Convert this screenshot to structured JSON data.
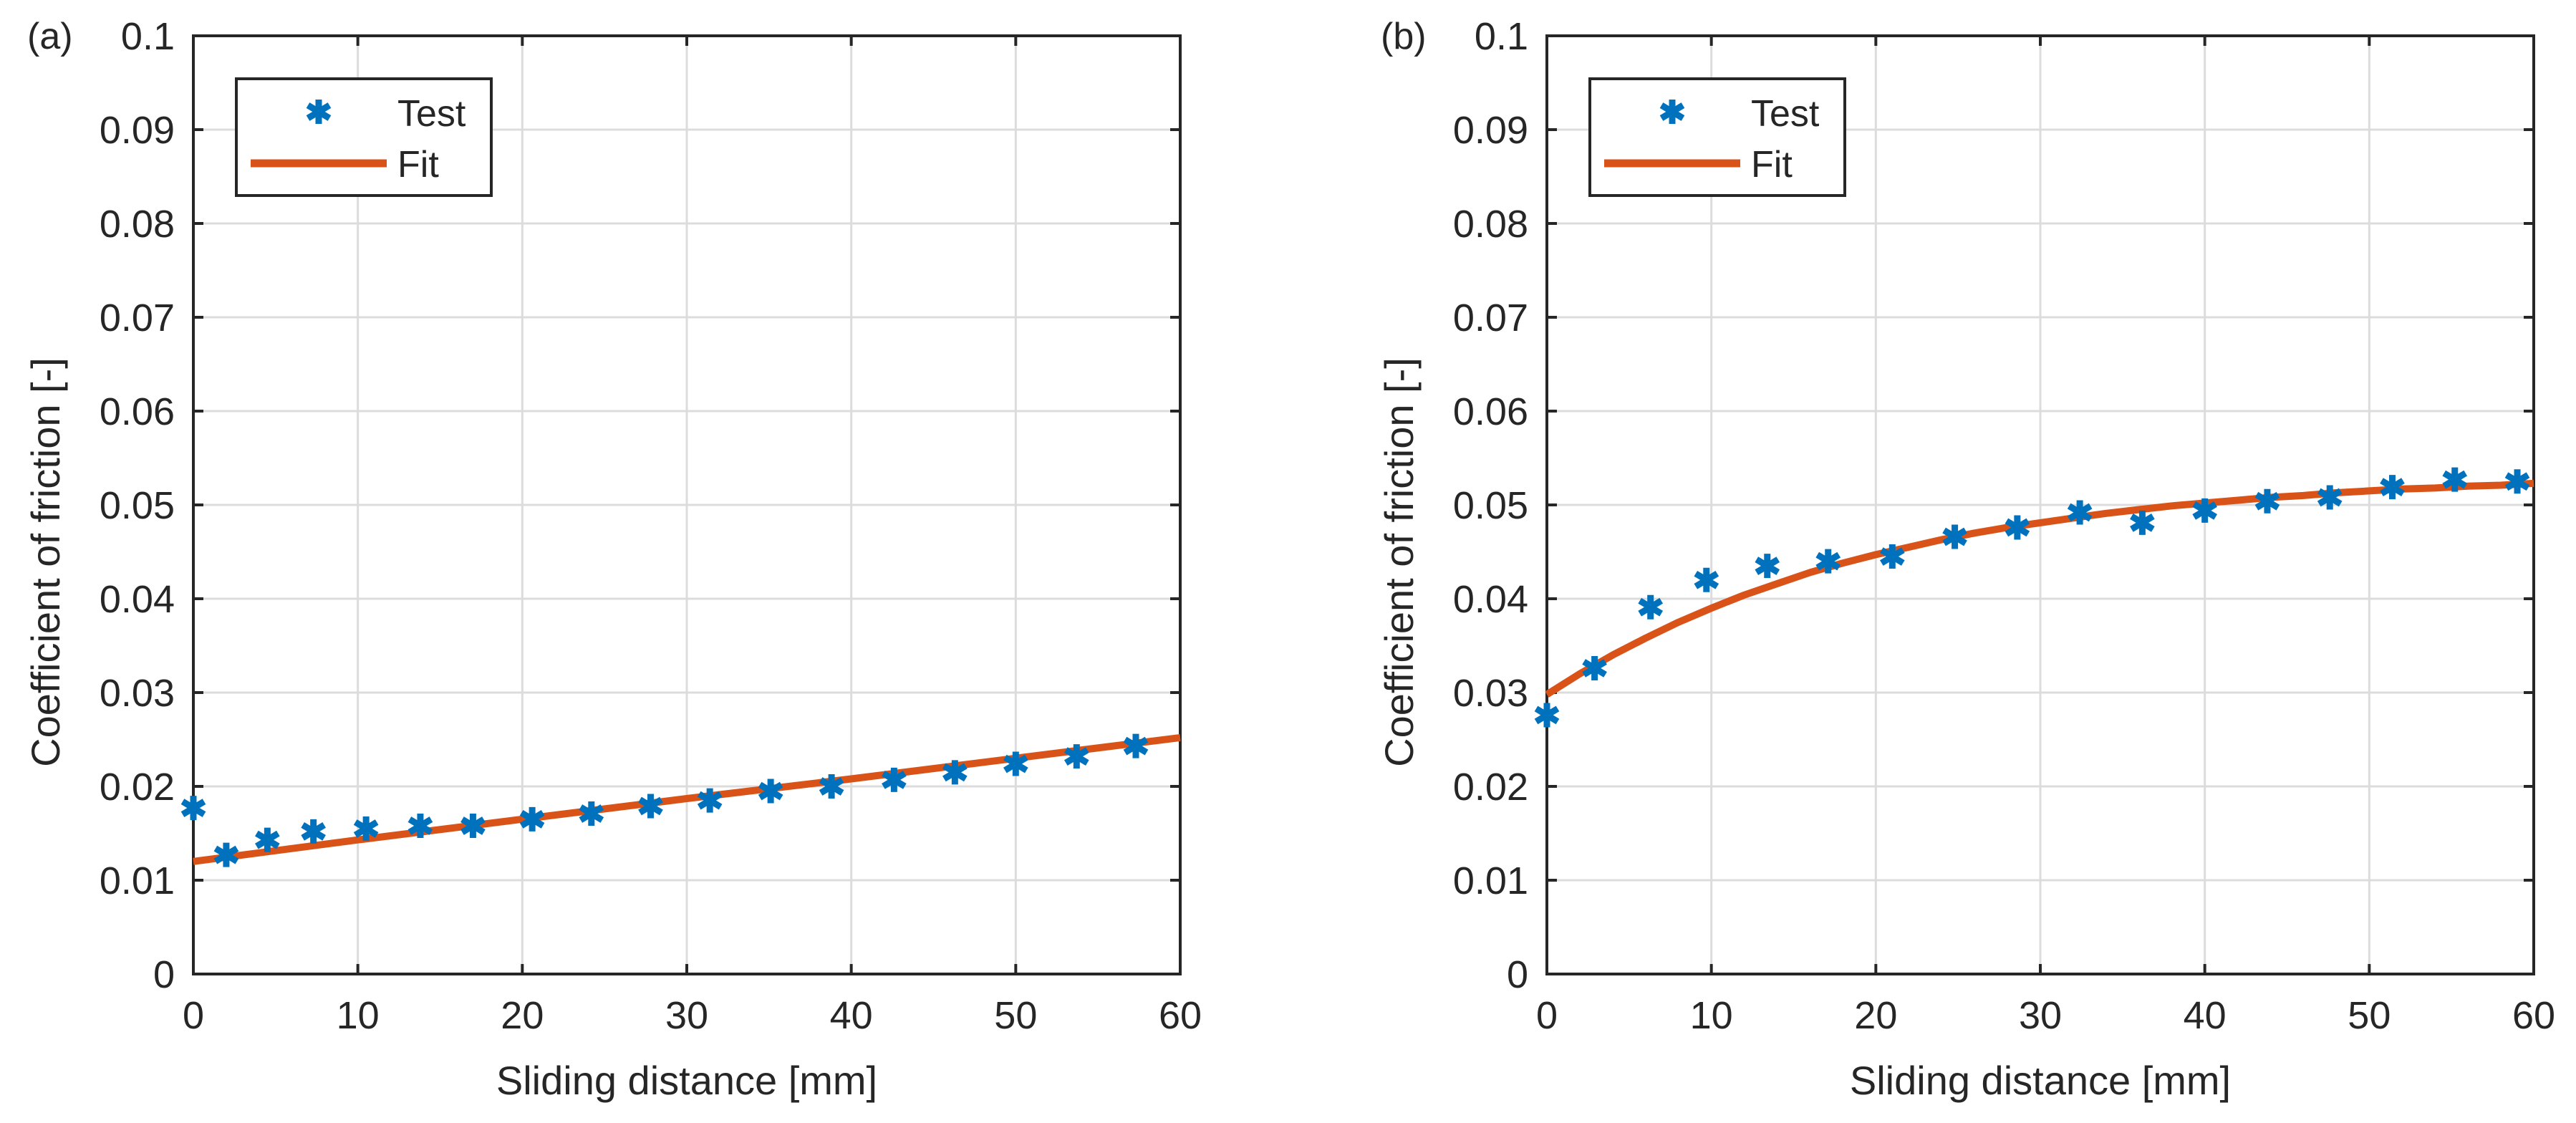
{
  "chart_data": [
    {
      "type": "scatter",
      "panel_label": "(a)",
      "xlabel": "Sliding distance [mm]",
      "ylabel": "Coefficient of friction [-]",
      "xlim": [
        0,
        60
      ],
      "ylim": [
        0,
        0.1
      ],
      "xticks": [
        0,
        10,
        20,
        30,
        40,
        50,
        60
      ],
      "yticks": [
        0,
        0.01,
        0.02,
        0.03,
        0.04,
        0.05,
        0.06,
        0.07,
        0.08,
        0.09,
        0.1
      ],
      "xtick_labels": [
        "0",
        "10",
        "20",
        "30",
        "40",
        "50",
        "60"
      ],
      "ytick_labels": [
        "0",
        "0.01",
        "0.02",
        "0.03",
        "0.04",
        "0.05",
        "0.06",
        "0.07",
        "0.08",
        "0.09",
        "0.1"
      ],
      "grid": true,
      "legend_position": "top-left",
      "legend": [
        "Test",
        "Fit"
      ],
      "series": [
        {
          "name": "Test",
          "kind": "markers",
          "color": "#0072BD",
          "x": [
            0,
            2,
            4.5,
            7.3,
            10.5,
            13.8,
            17,
            20.6,
            24.2,
            27.8,
            31.4,
            35.1,
            38.8,
            42.6,
            46.3,
            50,
            53.7,
            57.3
          ],
          "y": [
            0.0177,
            0.0127,
            0.0143,
            0.0152,
            0.0155,
            0.0158,
            0.0158,
            0.0165,
            0.0171,
            0.0179,
            0.0185,
            0.0195,
            0.02,
            0.0207,
            0.0215,
            0.0224,
            0.0232,
            0.0243
          ]
        },
        {
          "name": "Fit",
          "kind": "line",
          "color": "#D95319",
          "x": [
            0,
            10,
            20,
            30,
            40,
            50,
            60
          ],
          "y": [
            0.012,
            0.0143,
            0.0165,
            0.0187,
            0.0208,
            0.023,
            0.0252
          ]
        }
      ]
    },
    {
      "type": "scatter",
      "panel_label": "(b)",
      "xlabel": "Sliding distance [mm]",
      "ylabel": "Coefficient of friction [-]",
      "xlim": [
        0,
        60
      ],
      "ylim": [
        0,
        0.1
      ],
      "xticks": [
        0,
        10,
        20,
        30,
        40,
        50,
        60
      ],
      "yticks": [
        0,
        0.01,
        0.02,
        0.03,
        0.04,
        0.05,
        0.06,
        0.07,
        0.08,
        0.09,
        0.1
      ],
      "xtick_labels": [
        "0",
        "10",
        "20",
        "30",
        "40",
        "50",
        "60"
      ],
      "ytick_labels": [
        "0",
        "0.01",
        "0.02",
        "0.03",
        "0.04",
        "0.05",
        "0.06",
        "0.07",
        "0.08",
        "0.09",
        "0.1"
      ],
      "grid": true,
      "legend_position": "top-left",
      "legend": [
        "Test",
        "Fit"
      ],
      "series": [
        {
          "name": "Test",
          "kind": "markers",
          "color": "#0072BD",
          "x": [
            0,
            2.9,
            6.3,
            9.7,
            13.4,
            17.1,
            21,
            24.8,
            28.6,
            32.4,
            36.2,
            40,
            43.8,
            47.6,
            51.4,
            55.2,
            59
          ],
          "y": [
            0.0276,
            0.0326,
            0.0391,
            0.042,
            0.0435,
            0.044,
            0.0445,
            0.0466,
            0.0476,
            0.0492,
            0.0481,
            0.0494,
            0.0504,
            0.0508,
            0.0519,
            0.0527,
            0.0525
          ]
        },
        {
          "name": "Fit",
          "kind": "line",
          "color": "#D95319",
          "x": [
            0,
            2,
            4,
            6,
            8,
            10,
            12,
            14,
            16,
            18,
            20,
            22,
            24,
            26,
            28,
            30,
            32,
            34,
            36,
            38,
            40,
            42,
            44,
            46,
            48,
            50,
            52,
            54,
            56,
            58,
            60
          ],
          "y": [
            0.0298,
            0.032,
            0.034,
            0.0358,
            0.0375,
            0.039,
            0.0404,
            0.0416,
            0.0428,
            0.0438,
            0.0447,
            0.0455,
            0.0463,
            0.047,
            0.0476,
            0.0481,
            0.0486,
            0.0491,
            0.0495,
            0.0499,
            0.0502,
            0.0505,
            0.0508,
            0.051,
            0.0513,
            0.0515,
            0.0517,
            0.0518,
            0.052,
            0.0521,
            0.0523
          ]
        }
      ]
    }
  ]
}
